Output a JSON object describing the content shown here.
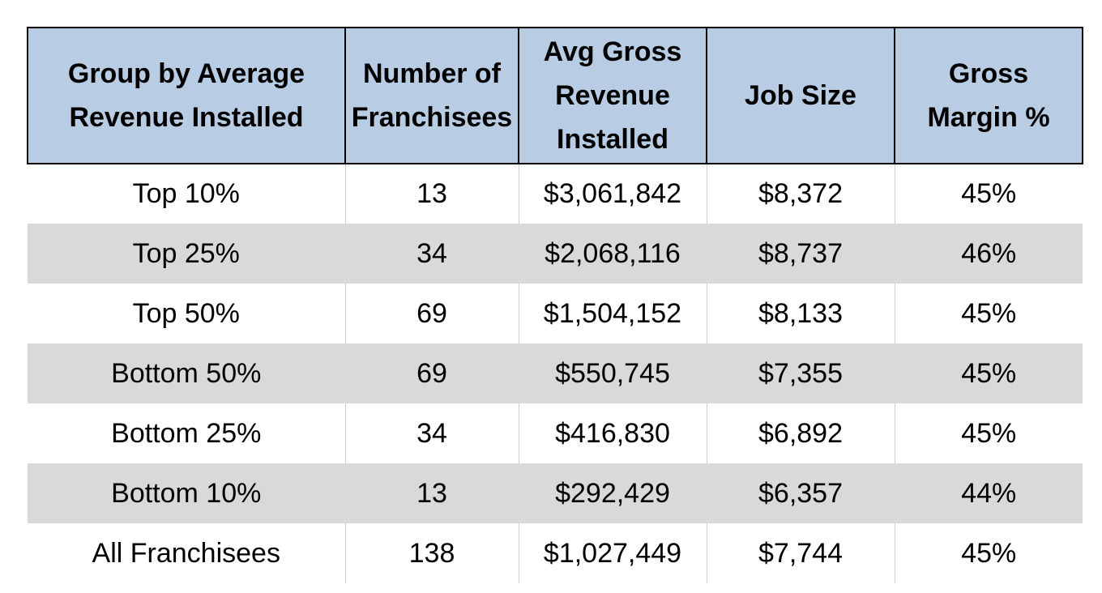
{
  "table": {
    "headers": [
      [
        "Group by Average",
        "Revenue Installed"
      ],
      [
        "Number of",
        "Franchisees"
      ],
      [
        "Avg Gross",
        "Revenue",
        "Installed"
      ],
      [
        "Job Size"
      ],
      [
        "Gross",
        "Margin %"
      ]
    ],
    "rows": [
      [
        "Top 10%",
        "13",
        "$3,061,842",
        "$8,372",
        "45%"
      ],
      [
        "Top 25%",
        "34",
        "$2,068,116",
        "$8,737",
        "46%"
      ],
      [
        "Top 50%",
        "69",
        "$1,504,152",
        "$8,133",
        "45%"
      ],
      [
        "Bottom 50%",
        "69",
        "$550,745",
        "$7,355",
        "45%"
      ],
      [
        "Bottom 25%",
        "34",
        "$416,830",
        "$6,892",
        "45%"
      ],
      [
        "Bottom 10%",
        "13",
        "$292,429",
        "$6,357",
        "44%"
      ],
      [
        "All Franchisees",
        "138",
        "$1,027,449",
        "$7,744",
        "45%"
      ]
    ]
  },
  "colors": {
    "header_bg": "#b8cce4",
    "band_bg": "#d9d9d9",
    "plain_bg": "#ffffff"
  }
}
